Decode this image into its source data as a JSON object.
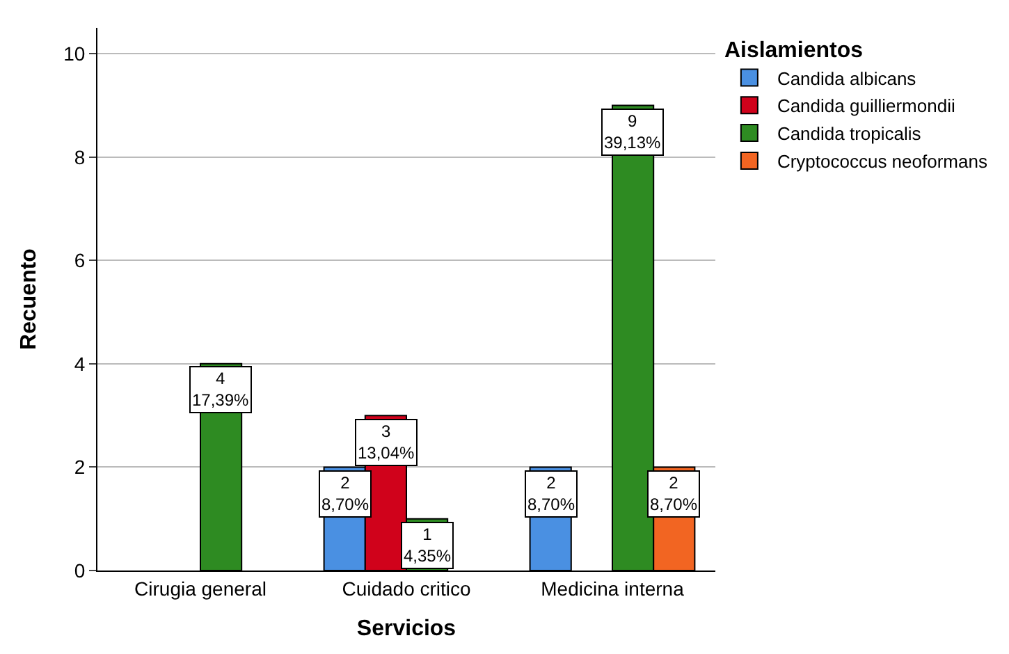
{
  "chart_data": {
    "type": "bar",
    "xlabel": "Servicios",
    "ylabel": "Recuento",
    "legend_title": "Aislamientos",
    "legend": "top right",
    "grid": "y",
    "categories": [
      "Cirugia general",
      "Cuidado critico",
      "Medicina interna"
    ],
    "ylim": [
      0,
      10.5
    ],
    "yticks": [
      0,
      2,
      4,
      6,
      8,
      10
    ],
    "series": [
      {
        "name": "Candida albicans",
        "color": "#4a90e2",
        "values": [
          null,
          2,
          2
        ],
        "value_labels": [
          null,
          "2\n8,70%",
          "2\n8,70%"
        ]
      },
      {
        "name": "Candida guilliermondii",
        "color": "#d0021b",
        "values": [
          null,
          3,
          null
        ],
        "value_labels": [
          null,
          "3\n13,04%",
          null
        ]
      },
      {
        "name": "Candida tropicalis",
        "color": "#2e8b22",
        "values": [
          4,
          1,
          9
        ],
        "value_labels": [
          "4\n17,39%",
          "1\n4,35%",
          "9\n39,13%"
        ]
      },
      {
        "name": "Cryptococcus neoformans",
        "color": "#f26522",
        "values": [
          null,
          null,
          2
        ],
        "value_labels": [
          null,
          null,
          "2\n8,70%"
        ]
      }
    ]
  }
}
